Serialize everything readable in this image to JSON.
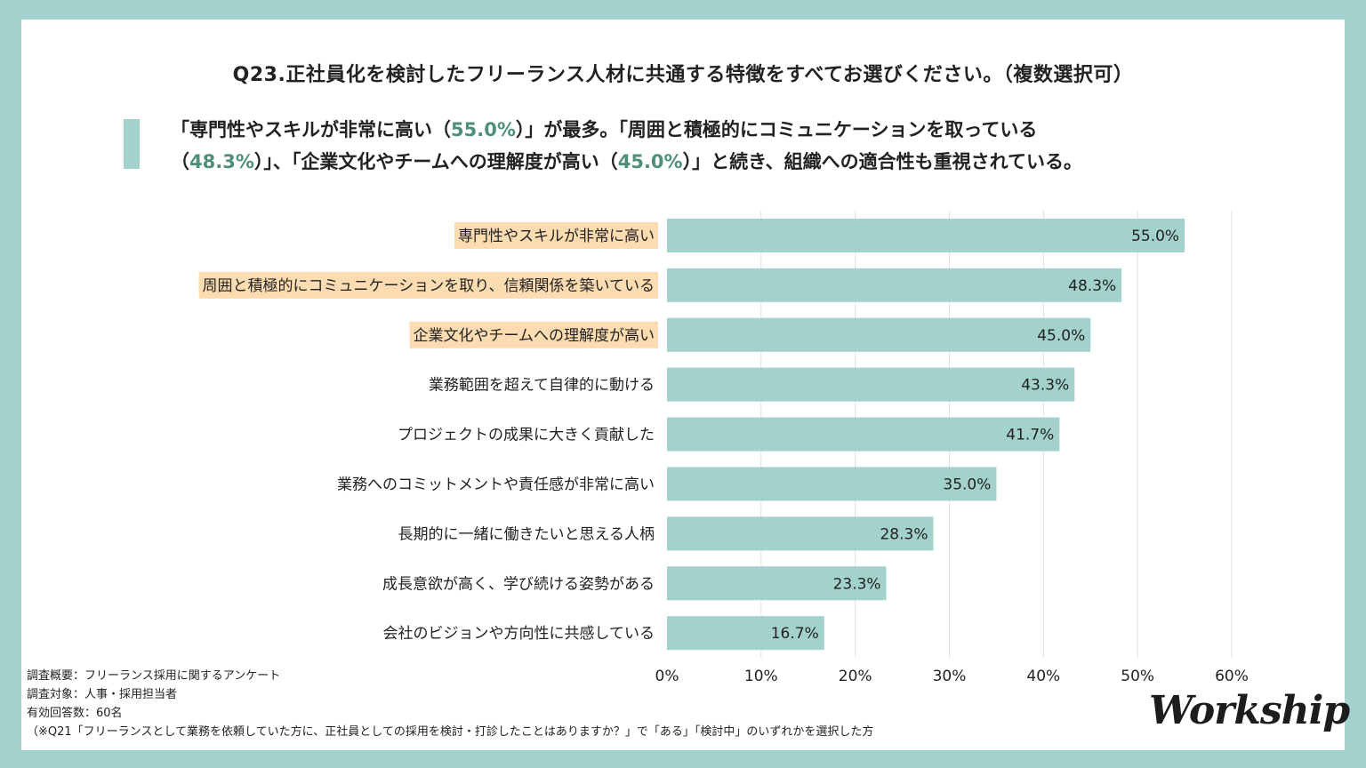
{
  "question": "Q23.正社員化を検討したフリーランス人材に共通する特徴をすべてお選びください。（複数選択可）",
  "summary": {
    "line1_a": "「専門性やスキルが非常に高い（",
    "line1_v1": "55.0%",
    "line1_b": "）」が最多。「周囲と積極的にコミュニケーションを取っている",
    "line2_a": "（",
    "line2_v2": "48.3%",
    "line2_b": "）」、「企業文化やチームへの理解度が高い（",
    "line2_v3": "45.0%",
    "line2_c": "）」と続き、組織への適合性も重視されている。"
  },
  "chart_data": {
    "type": "bar",
    "orientation": "horizontal",
    "categories": [
      "専門性やスキルが非常に高い",
      "周囲と積極的にコミュニケーションを取り、信頼関係を築いている",
      "企業文化やチームへの理解度が高い",
      "業務範囲を超えて自律的に動ける",
      "プロジェクトの成果に大きく貢献した",
      "業務へのコミットメントや責任感が非常に高い",
      "長期的に一緒に働きたいと思える人柄",
      "成長意欲が高く、学び続ける姿勢がある",
      "会社のビジョンや方向性に共感している"
    ],
    "values": [
      55.0,
      48.3,
      45.0,
      43.3,
      41.7,
      35.0,
      28.3,
      23.3,
      16.7
    ],
    "value_labels": [
      "55.0%",
      "48.3%",
      "45.0%",
      "43.3%",
      "41.7%",
      "35.0%",
      "28.3%",
      "23.3%",
      "16.7%"
    ],
    "highlighted": [
      true,
      true,
      true,
      false,
      false,
      false,
      false,
      false,
      false
    ],
    "xlim": [
      0,
      60
    ],
    "ticks": [
      "0%",
      "10%",
      "20%",
      "30%",
      "40%",
      "50%",
      "60%"
    ],
    "grid": true,
    "bar_color": "#a3d1cb",
    "highlight_color": "#fcdcb0"
  },
  "notes": [
    "調査概要：フリーランス採用に関するアンケート",
    "調査対象：人事・採用担当者",
    "有効回答数：60名",
    "（※Q21「フリーランスとして業務を依頼していた方に、正社員としての採用を検討・打診したことはありますか？」で「ある」「検討中」のいずれかを選択した方"
  ],
  "logo": "Workship",
  "colors": {
    "frame": "#a3d1cb",
    "accent_text": "#4e8f7a",
    "grid": "#e0e0e0"
  }
}
